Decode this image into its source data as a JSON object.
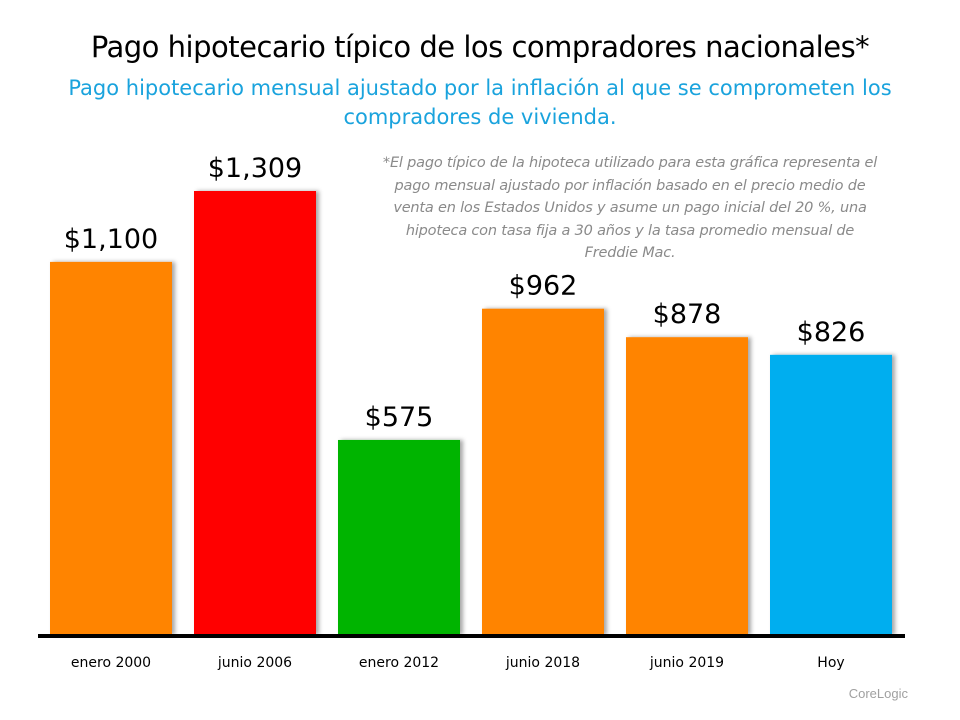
{
  "chart_data": {
    "type": "bar",
    "title": "Pago hipotecario típico de los compradores nacionales*",
    "subtitle": "Pago hipotecario mensual ajustado por la inflación al que se comprometen los compradores de vivienda.",
    "note": "*El pago típico de la hipoteca utilizado para esta gráfica representa el pago mensual ajustado por inflación basado en el precio medio de venta en los Estados Unidos y asume un pago inicial del 20 %, una hipoteca con tasa fija a 30 años y la tasa promedio mensual de Freddie Mac.",
    "source": "CoreLogic",
    "categories": [
      "enero 2000",
      "junio 2006",
      "enero 2012",
      "junio 2018",
      "junio 2019",
      "Hoy"
    ],
    "values": [
      1100,
      1309,
      575,
      962,
      878,
      826
    ],
    "data_labels": [
      "$1,100",
      "$1,309",
      "$575",
      "$962",
      "$878",
      "$826"
    ],
    "colors": [
      "#ff8400",
      "#ff0000",
      "#00b400",
      "#ff8400",
      "#ff8400",
      "#00aeef"
    ],
    "ylim": [
      0,
      1309
    ],
    "grid": false,
    "xlabel": "",
    "ylabel": ""
  }
}
